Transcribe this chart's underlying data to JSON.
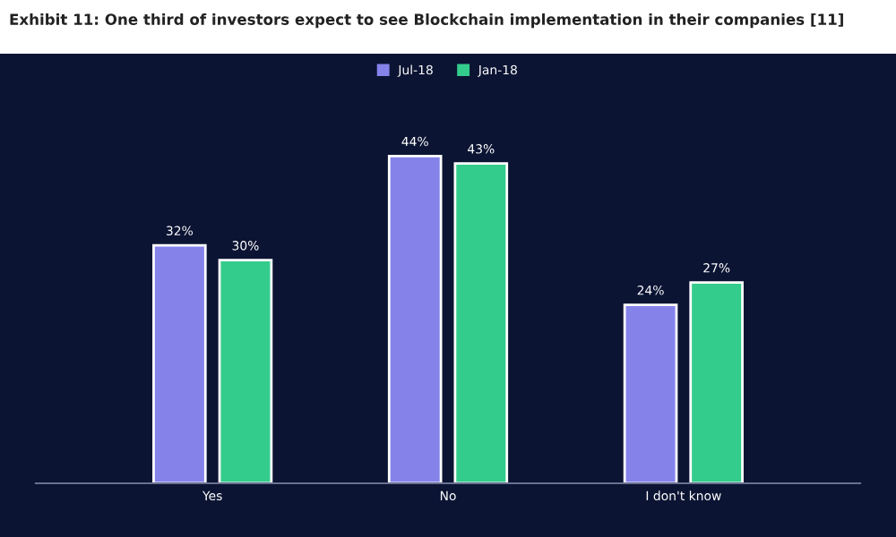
{
  "chart_data": {
    "type": "bar",
    "title": "Exhibit 11: One third of investors expect to see Blockchain implementation in their companies [11]",
    "categories": [
      "Yes",
      "No",
      "I don't know"
    ],
    "series": [
      {
        "name": "Jul-18",
        "color": "#8583ea",
        "values": [
          32,
          44,
          24
        ],
        "value_labels": [
          "32%",
          "44%",
          "24%"
        ]
      },
      {
        "name": "Jan-18",
        "color": "#34cc8c",
        "values": [
          30,
          43,
          27
        ],
        "value_labels": [
          "30%",
          "43%",
          "27%"
        ]
      }
    ],
    "legend": "top",
    "grid": false
  }
}
